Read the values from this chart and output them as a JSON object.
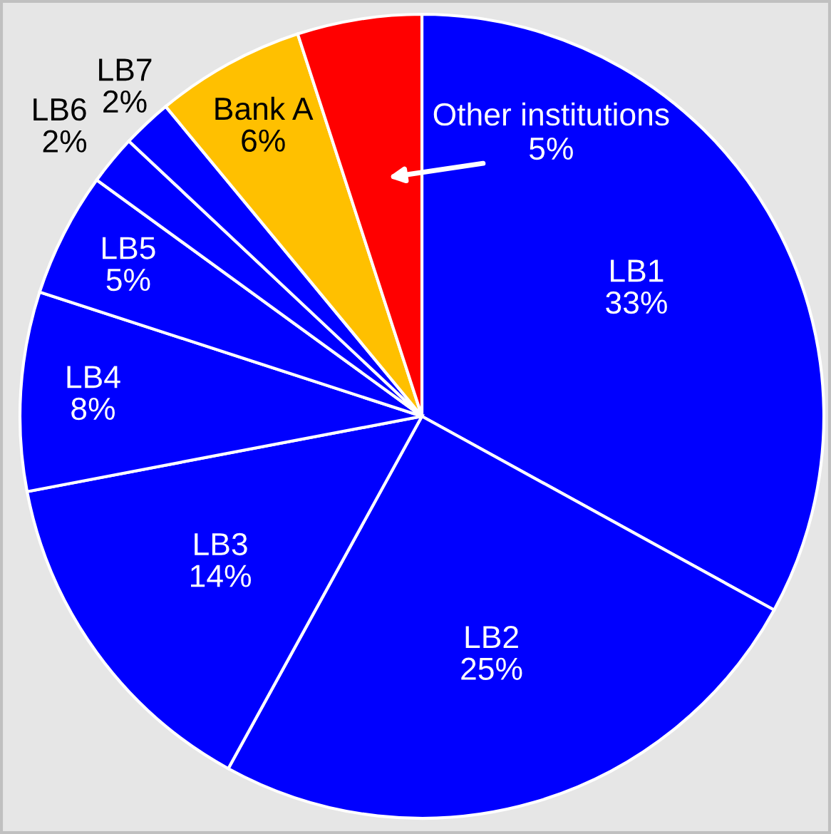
{
  "chart_data": {
    "type": "pie",
    "categories": [
      "LB1",
      "LB2",
      "LB3",
      "LB4",
      "LB5",
      "LB6",
      "LB7",
      "Bank A",
      "Other institutions"
    ],
    "values": [
      33,
      25,
      14,
      8,
      5,
      2,
      2,
      6,
      5
    ],
    "colors": [
      "#0000ff",
      "#0000ff",
      "#0000ff",
      "#0000ff",
      "#0000ff",
      "#0000ff",
      "#0000ff",
      "#ffc000",
      "#ff0000"
    ],
    "value_labels": [
      "33%",
      "25%",
      "14%",
      "8%",
      "5%",
      "2%",
      "2%",
      "6%",
      "5%"
    ]
  }
}
